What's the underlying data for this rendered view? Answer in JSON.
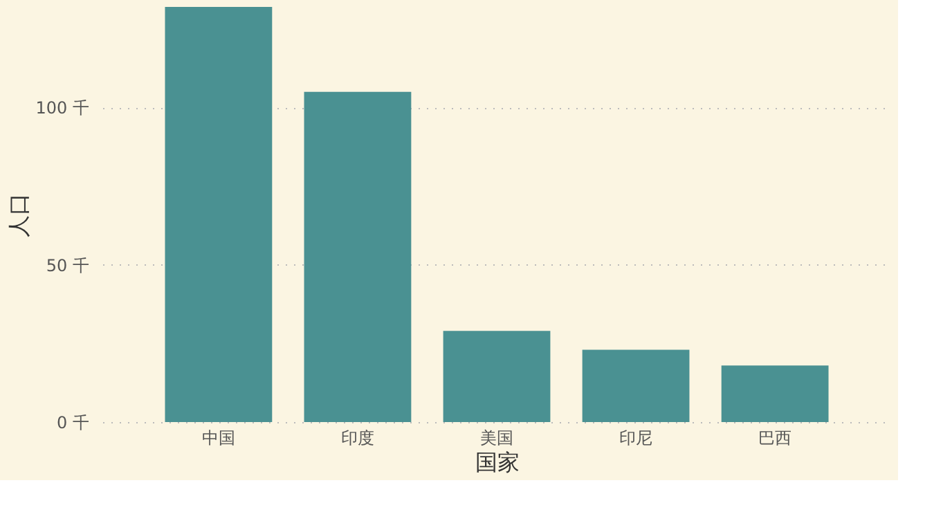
{
  "chart_data": {
    "type": "bar",
    "xlabel": "国家",
    "ylabel": "人口",
    "categories": [
      "中国",
      "印度",
      "美国",
      "印尼",
      "巴西"
    ],
    "values": [
      132,
      105,
      29,
      23,
      18
    ],
    "color": "#4a9192",
    "ylim": [
      0,
      132
    ],
    "yticks": [
      {
        "value": 0,
        "label": "0 千"
      },
      {
        "value": 50,
        "label": "50 千"
      },
      {
        "value": 100,
        "label": "100 千"
      }
    ],
    "grid": "y"
  }
}
